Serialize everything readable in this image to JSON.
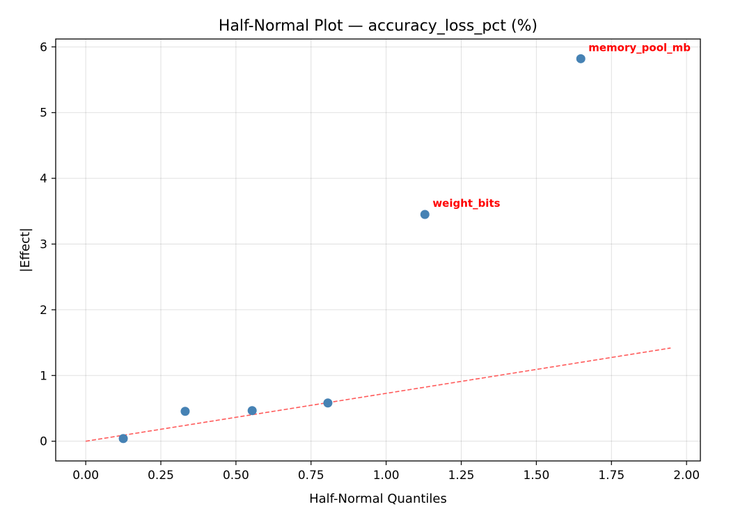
{
  "chart_data": {
    "type": "scatter",
    "title": "Half-Normal Plot — accuracy_loss_pct (%)",
    "xlabel": "Half-Normal Quantiles",
    "ylabel": "|Effect|",
    "xlim": [
      -0.1,
      2.046
    ],
    "ylim": [
      -0.3,
      6.12
    ],
    "xticks": [
      0.0,
      0.25,
      0.5,
      0.75,
      1.0,
      1.25,
      1.5,
      1.75,
      2.0
    ],
    "xtick_labels": [
      "0.00",
      "0.25",
      "0.50",
      "0.75",
      "1.00",
      "1.25",
      "1.50",
      "1.75",
      "2.00"
    ],
    "yticks": [
      0,
      1,
      2,
      3,
      4,
      5,
      6
    ],
    "ytick_labels": [
      "0",
      "1",
      "2",
      "3",
      "4",
      "5",
      "6"
    ],
    "grid": true,
    "points": [
      {
        "x": 0.125,
        "y": 0.04,
        "label": ""
      },
      {
        "x": 0.331,
        "y": 0.455,
        "label": ""
      },
      {
        "x": 0.554,
        "y": 0.466,
        "label": ""
      },
      {
        "x": 0.806,
        "y": 0.582,
        "label": ""
      },
      {
        "x": 1.129,
        "y": 3.45,
        "label": "weight_bits"
      },
      {
        "x": 1.648,
        "y": 5.82,
        "label": "memory_pool_mb"
      }
    ],
    "reference_line": {
      "x": [
        0.0,
        1.947
      ],
      "y": [
        0.0,
        1.418
      ],
      "style": "dashed"
    },
    "colors": {
      "points": "#4682b4",
      "reference_line": "#ff5a5a",
      "labels": "#ff0000"
    }
  }
}
